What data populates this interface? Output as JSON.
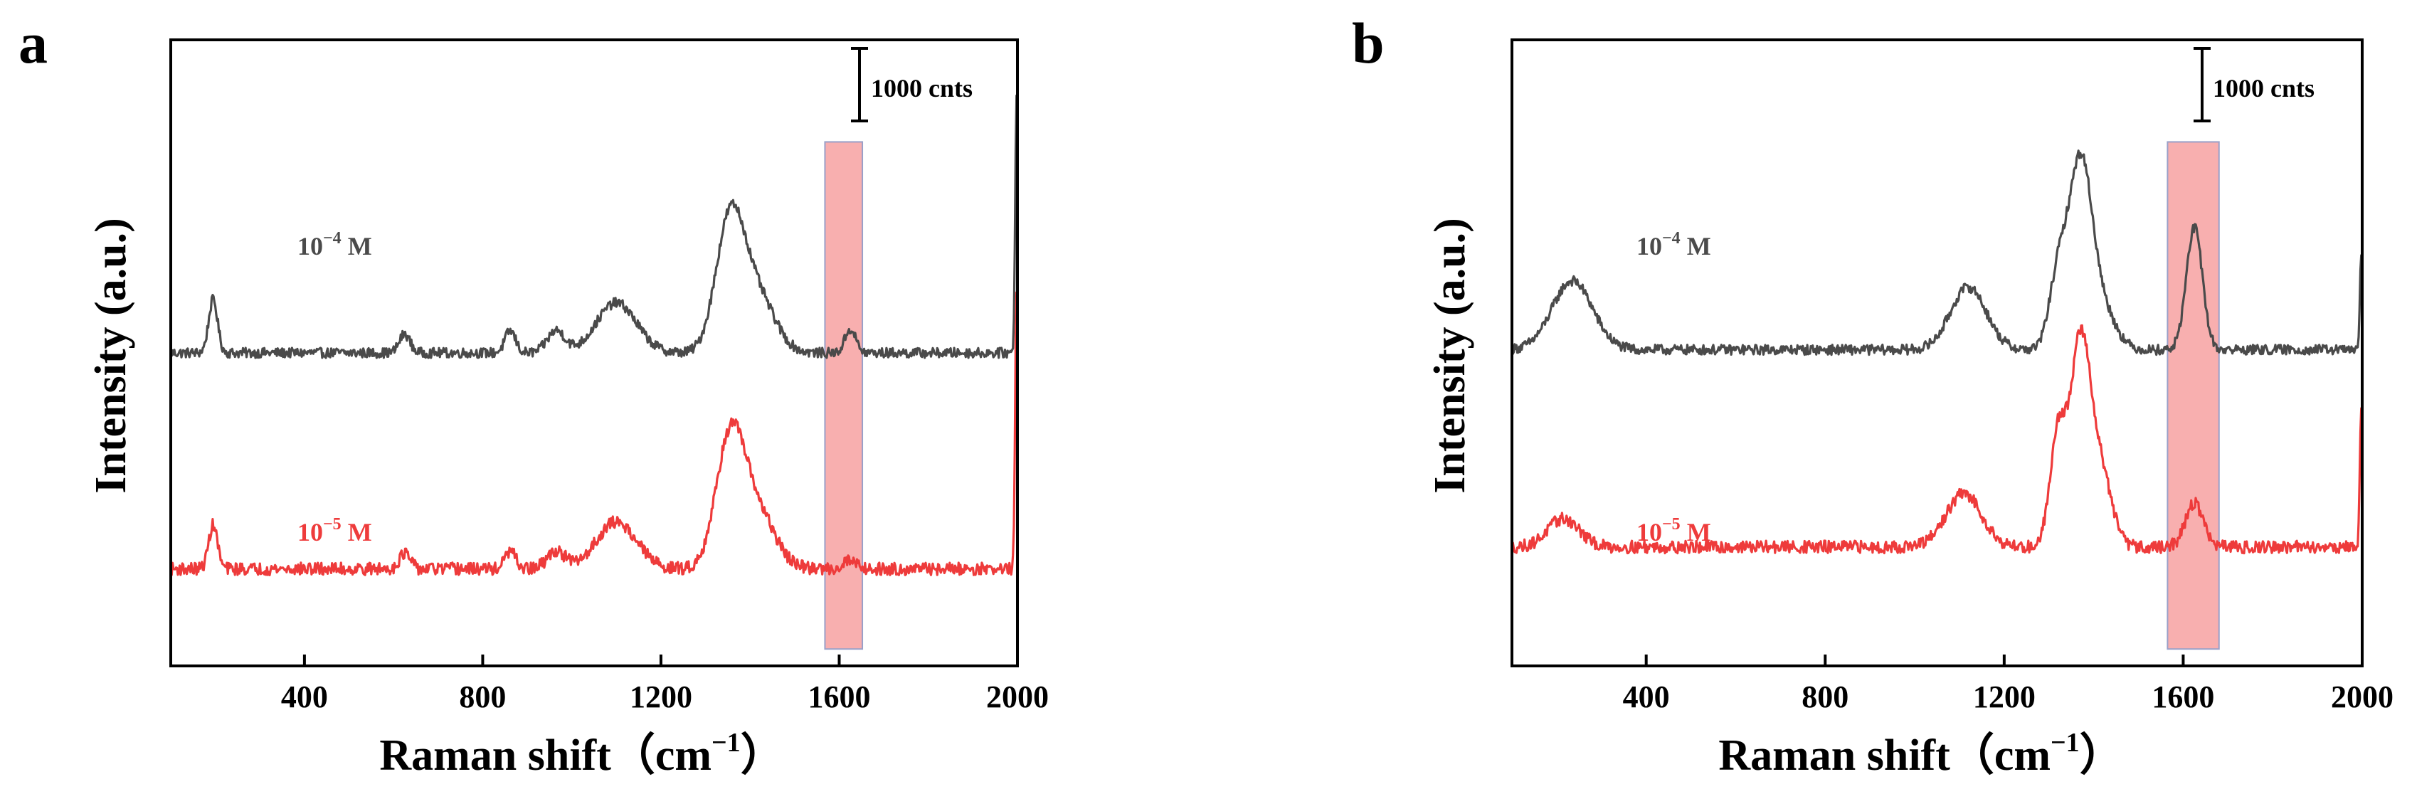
{
  "figure": {
    "panel_count": 2
  },
  "colors": {
    "series_high": "#4a4a4a",
    "series_low": "#ee3b3b",
    "highlight": "#f26d6d",
    "axis": "#000000"
  },
  "chart_data": [
    {
      "panel_label": "a",
      "type": "line",
      "xlabel_main": "Raman shift（cm",
      "xlabel_sup": "−1",
      "xlabel_end": "）",
      "ylabel": "Intensity (a.u.)",
      "xlim": [
        100,
        2000
      ],
      "ylim": [
        0,
        10
      ],
      "x_ticks": [
        400,
        800,
        1200,
        1600,
        2000
      ],
      "scale_bar_label": "1000 cnts",
      "scale_bar_value": 1000,
      "highlight_band": [
        1568,
        1652
      ],
      "series": [
        {
          "name": "10^-4 M",
          "label_base": "10",
          "label_exp": "−4",
          "label_unit": " M",
          "color_key": "series_high",
          "baseline": 5.0,
          "peaks": [
            {
              "center": 195,
              "height": 0.85,
              "width": 10
            },
            {
              "center": 625,
              "height": 0.3,
              "width": 12
            },
            {
              "center": 862,
              "height": 0.35,
              "width": 12
            },
            {
              "center": 965,
              "height": 0.35,
              "width": 20
            },
            {
              "center": 1100,
              "height": 0.8,
              "width": 45
            },
            {
              "center": 1355,
              "height": 2.05,
              "width": 32
            },
            {
              "center": 1415,
              "height": 0.9,
              "width": 40
            },
            {
              "center": 1625,
              "height": 0.38,
              "width": 12
            },
            {
              "center": 1998,
              "height": 4.1,
              "width": 3
            }
          ]
        },
        {
          "name": "10^-5 M",
          "label_base": "10",
          "label_exp": "−5",
          "label_unit": " M",
          "color_key": "series_low",
          "baseline": 1.55,
          "peaks": [
            {
              "center": 195,
              "height": 0.7,
              "width": 10
            },
            {
              "center": 625,
              "height": 0.25,
              "width": 12
            },
            {
              "center": 862,
              "height": 0.28,
              "width": 12
            },
            {
              "center": 965,
              "height": 0.28,
              "width": 20
            },
            {
              "center": 1100,
              "height": 0.75,
              "width": 45
            },
            {
              "center": 1355,
              "height": 2.0,
              "width": 32
            },
            {
              "center": 1415,
              "height": 0.9,
              "width": 40
            },
            {
              "center": 1625,
              "height": 0.15,
              "width": 15
            },
            {
              "center": 1998,
              "height": 4.5,
              "width": 3
            }
          ]
        }
      ]
    },
    {
      "panel_label": "b",
      "type": "line",
      "xlabel_main": "Raman shift（cm",
      "xlabel_sup": "−1",
      "xlabel_end": "）",
      "ylabel": "Intensity (a.u.)",
      "xlim": [
        100,
        2000
      ],
      "ylim": [
        0,
        10
      ],
      "x_ticks": [
        400,
        800,
        1200,
        1600,
        2000
      ],
      "scale_bar_label": "1000 cnts",
      "scale_bar_value": 1000,
      "highlight_band": [
        1565,
        1680
      ],
      "series": [
        {
          "name": "10^-4 M",
          "label_base": "10",
          "label_exp": "−4",
          "label_unit": " M",
          "color_key": "series_high",
          "baseline": 5.05,
          "peaks": [
            {
              "center": 235,
              "height": 1.1,
              "width": 45
            },
            {
              "center": 1120,
              "height": 1.0,
              "width": 40
            },
            {
              "center": 1320,
              "height": 1.1,
              "width": 20
            },
            {
              "center": 1370,
              "height": 2.95,
              "width": 26
            },
            {
              "center": 1420,
              "height": 0.6,
              "width": 30
            },
            {
              "center": 1625,
              "height": 1.95,
              "width": 18
            },
            {
              "center": 1998,
              "height": 1.5,
              "width": 3
            }
          ]
        },
        {
          "name": "10^-5 M",
          "label_base": "10",
          "label_exp": "−5",
          "label_unit": " M",
          "color_key": "series_low",
          "baseline": 1.9,
          "peaks": [
            {
              "center": 215,
              "height": 0.45,
              "width": 35
            },
            {
              "center": 1110,
              "height": 0.85,
              "width": 40
            },
            {
              "center": 1320,
              "height": 1.8,
              "width": 18
            },
            {
              "center": 1370,
              "height": 3.2,
              "width": 22
            },
            {
              "center": 1415,
              "height": 1.2,
              "width": 25
            },
            {
              "center": 1625,
              "height": 0.7,
              "width": 20
            },
            {
              "center": 1998,
              "height": 2.3,
              "width": 3
            }
          ]
        }
      ]
    }
  ]
}
